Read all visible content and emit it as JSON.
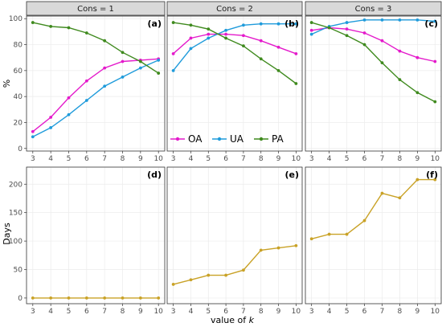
{
  "chart_data": {
    "type": "line",
    "facet_titles": [
      "Cons = 1",
      "Cons = 2",
      "Cons = 3"
    ],
    "panel_tags": [
      [
        "(a)",
        "(b)",
        "(c)"
      ],
      [
        "(d)",
        "(e)",
        "(f)"
      ]
    ],
    "x": [
      3,
      4,
      5,
      6,
      7,
      8,
      9,
      10
    ],
    "xlabel_prefix": "value of ",
    "xlabel_var": "k",
    "rows": [
      {
        "ylabel": "%",
        "ylim": [
          -2,
          102
        ],
        "yticks": [
          0,
          20,
          40,
          60,
          80,
          100
        ],
        "panels": [
          {
            "series": [
              {
                "name": "OA",
                "color": "#E41ACB",
                "values": [
                  13,
                  24,
                  39,
                  52,
                  62,
                  67,
                  68,
                  69
                ]
              },
              {
                "name": "UA",
                "color": "#1F9BDB",
                "values": [
                  9,
                  16,
                  26,
                  37,
                  48,
                  55,
                  62,
                  68
                ]
              },
              {
                "name": "PA",
                "color": "#3F8A1E",
                "values": [
                  97,
                  94,
                  93,
                  89,
                  83,
                  74,
                  67,
                  58
                ]
              }
            ]
          },
          {
            "series": [
              {
                "name": "OA",
                "color": "#E41ACB",
                "values": [
                  73,
                  85,
                  88,
                  88,
                  87,
                  83,
                  78,
                  73
                ]
              },
              {
                "name": "UA",
                "color": "#1F9BDB",
                "values": [
                  60,
                  77,
                  85,
                  91,
                  95,
                  96,
                  96,
                  96
                ]
              },
              {
                "name": "PA",
                "color": "#3F8A1E",
                "values": [
                  97,
                  95,
                  92,
                  85,
                  79,
                  69,
                  60,
                  50
                ]
              }
            ]
          },
          {
            "series": [
              {
                "name": "OA",
                "color": "#E41ACB",
                "values": [
                  91,
                  93,
                  92,
                  89,
                  83,
                  75,
                  70,
                  67
                ]
              },
              {
                "name": "UA",
                "color": "#1F9BDB",
                "values": [
                  88,
                  94,
                  97,
                  99,
                  99,
                  99,
                  99,
                  98
                ]
              },
              {
                "name": "PA",
                "color": "#3F8A1E",
                "values": [
                  97,
                  93,
                  87,
                  80,
                  66,
                  53,
                  43,
                  36
                ]
              }
            ]
          }
        ]
      },
      {
        "ylabel": "Days",
        "ylim": [
          -10,
          230
        ],
        "yticks": [
          0,
          50,
          100,
          150,
          200
        ],
        "panels": [
          {
            "series": [
              {
                "name": "Days",
                "color": "#C9A227",
                "values": [
                  0,
                  0,
                  0,
                  0,
                  0,
                  0,
                  0,
                  0
                ]
              }
            ]
          },
          {
            "series": [
              {
                "name": "Days",
                "color": "#C9A227",
                "values": [
                  24,
                  32,
                  40,
                  40,
                  49,
                  84,
                  88,
                  92
                ]
              }
            ]
          },
          {
            "series": [
              {
                "name": "Days",
                "color": "#C9A227",
                "values": [
                  104,
                  112,
                  112,
                  136,
                  184,
                  176,
                  208,
                  208
                ]
              }
            ]
          }
        ]
      }
    ],
    "legend": {
      "position": "inside-bottom-center",
      "entries": [
        {
          "label": "OA",
          "color": "#E41ACB"
        },
        {
          "label": "UA",
          "color": "#1F9BDB"
        },
        {
          "label": "PA",
          "color": "#3F8A1E"
        }
      ]
    },
    "grid": true
  }
}
